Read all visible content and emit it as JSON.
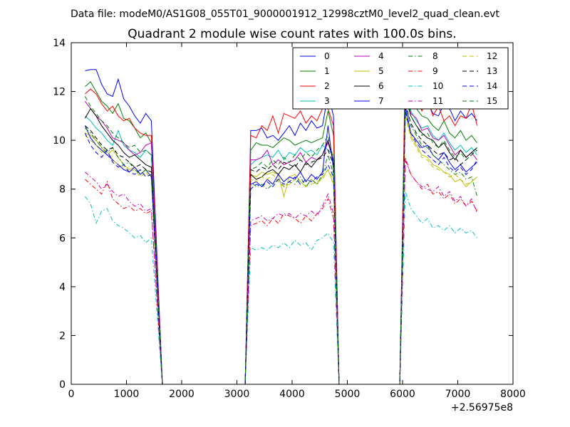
{
  "chart_data": {
    "type": "line",
    "suptitle": "Data file: modeM0/AS1G08_055T01_9000001912_12998cztM0_level2_quad_clean.evt",
    "title": "Quadrant 2 module wise count rates with 100.0s bins.",
    "xlabel": "",
    "ylabel": "",
    "x_offset_label": "+2.56975e8",
    "xlim": [
      0,
      8000
    ],
    "ylim": [
      0,
      14
    ],
    "xticks": [
      0,
      1000,
      2000,
      3000,
      4000,
      5000,
      6000,
      7000,
      8000
    ],
    "yticks": [
      0,
      2,
      4,
      6,
      8,
      10,
      12,
      14
    ],
    "grid": false,
    "legend": {
      "placement": "top-right",
      "columns": 4
    },
    "x_segments": [
      {
        "start": 250,
        "step": 100,
        "count": 13
      },
      {
        "start": 1650,
        "step": 100,
        "count": 1
      },
      {
        "start": 1650,
        "step": 100,
        "count": 15
      },
      {
        "start": 3250,
        "step": 100,
        "count": 15
      },
      {
        "start": 4850,
        "step": 100,
        "count": 1
      },
      {
        "start": 4850,
        "step": 100,
        "count": 11
      },
      {
        "start": 6050,
        "step": 100,
        "count": 14
      }
    ],
    "series": [
      {
        "name": "0",
        "color": "#0000ff",
        "dash": "solid",
        "on": [
          12.85,
          12.9,
          12.9,
          12.3,
          11.9,
          11.8,
          12.5,
          11.7,
          11.4,
          11.0,
          10.7,
          11.1,
          10.8,
          10.4
        ],
        "on2": [
          10.4,
          10.4,
          10.5,
          10.1,
          10.2,
          10.0,
          10.3,
          10.6,
          10.2,
          10.7,
          10.4,
          10.8,
          10.5,
          10.6,
          11.9,
          11.0
        ],
        "on3": [
          12.5,
          12.0,
          11.8,
          11.4,
          11.6,
          11.1,
          11.0,
          11.5,
          11.3,
          10.8,
          11.2,
          10.9,
          11.1,
          10.8
        ]
      },
      {
        "name": "1",
        "color": "#008000",
        "dash": "solid",
        "on": [
          12.2,
          12.4,
          12.0,
          11.6,
          11.4,
          11.1,
          11.5,
          10.9,
          10.8,
          10.5,
          10.1,
          10.3,
          9.9,
          9.5
        ],
        "on2": [
          9.6,
          9.9,
          9.8,
          9.8,
          9.7,
          9.9,
          10.1,
          10.0,
          9.8,
          9.9,
          10.0,
          9.9,
          10.0,
          10.1,
          11.2,
          10.2
        ],
        "on3": [
          12.2,
          11.8,
          11.3,
          11.0,
          10.9,
          10.6,
          10.4,
          10.8,
          10.3,
          10.1,
          10.4,
          10.0,
          10.2,
          9.9
        ]
      },
      {
        "name": "2",
        "color": "#ff0000",
        "dash": "solid",
        "on": [
          11.9,
          12.1,
          11.9,
          11.5,
          11.2,
          11.4,
          11.0,
          10.8,
          10.9,
          10.5,
          10.3,
          10.2,
          10.2,
          9.5
        ],
        "on2": [
          10.2,
          10.1,
          10.6,
          10.4,
          11.0,
          10.3,
          11.1,
          11.0,
          10.9,
          11.2,
          10.7,
          11.0,
          10.8,
          11.3,
          11.3,
          10.6
        ],
        "on3": [
          13.4,
          12.4,
          11.8,
          11.2,
          11.7,
          11.0,
          11.4,
          10.8,
          11.0,
          10.6,
          11.0,
          10.9,
          11.5,
          10.6
        ]
      },
      {
        "name": "3",
        "color": "#00bfbf",
        "dash": "solid",
        "on": [
          11.0,
          10.8,
          10.5,
          10.3,
          10.0,
          9.8,
          10.4,
          9.8,
          9.6,
          9.5,
          9.3,
          9.6,
          9.4,
          9.2
        ],
        "on2": [
          9.0,
          9.2,
          9.3,
          9.4,
          9.3,
          9.6,
          9.2,
          9.5,
          9.4,
          9.7,
          9.5,
          9.6,
          9.4,
          9.8,
          9.6,
          9.4
        ],
        "on3": [
          12.3,
          11.2,
          10.8,
          10.5,
          10.6,
          10.2,
          10.0,
          10.3,
          9.9,
          9.6,
          9.8,
          9.5,
          9.7,
          9.4
        ]
      },
      {
        "name": "4",
        "color": "#bf00bf",
        "dash": "solid",
        "on": [
          11.6,
          11.3,
          11.0,
          10.8,
          10.5,
          10.1,
          10.0,
          9.9,
          9.6,
          9.4,
          9.5,
          9.8,
          9.9,
          8.4
        ],
        "on2": [
          9.2,
          9.2,
          9.3,
          9.6,
          9.0,
          9.2,
          9.0,
          9.1,
          9.2,
          9.5,
          9.1,
          9.3,
          9.2,
          9.4,
          9.9,
          9.2
        ],
        "on3": [
          12.2,
          11.1,
          10.9,
          10.4,
          10.5,
          10.1,
          10.0,
          10.2,
          9.8,
          9.4,
          9.6,
          9.3,
          9.5,
          9.2
        ]
      },
      {
        "name": "5",
        "color": "#bfbf00",
        "dash": "solid",
        "on": [
          10.3,
          10.2,
          10.0,
          9.7,
          9.4,
          9.6,
          9.3,
          9.0,
          8.8,
          8.9,
          8.6,
          8.8,
          8.7,
          8.1
        ],
        "on2": [
          8.6,
          8.5,
          8.7,
          8.6,
          8.7,
          8.6,
          7.7,
          8.5,
          8.6,
          8.3,
          8.1,
          8.4,
          8.2,
          8.5,
          8.8,
          8.2
        ],
        "on3": [
          11.1,
          10.2,
          9.8,
          9.4,
          9.3,
          9.0,
          8.9,
          8.7,
          8.6,
          8.3,
          8.4,
          8.1,
          8.3,
          8.5
        ]
      },
      {
        "name": "6",
        "color": "#000000",
        "dash": "solid",
        "on": [
          10.9,
          11.3,
          11.0,
          10.6,
          10.3,
          10.0,
          9.8,
          9.5,
          9.3,
          9.4,
          9.2,
          9.0,
          8.9,
          8.6
        ],
        "on2": [
          8.6,
          8.4,
          8.5,
          8.7,
          8.8,
          8.6,
          8.9,
          8.8,
          9.0,
          8.7,
          9.1,
          8.9,
          9.2,
          9.4,
          10.0,
          9.1
        ],
        "on3": [
          11.8,
          11.0,
          10.6,
          10.3,
          10.1,
          10.0,
          9.7,
          9.9,
          9.5,
          9.2,
          9.6,
          9.3,
          9.5,
          9.7
        ]
      },
      {
        "name": "7",
        "color": "#0000ff",
        "dash": "solid",
        "on": [
          10.6,
          10.1,
          9.8,
          9.6,
          9.4,
          9.2,
          9.0,
          8.8,
          8.7,
          8.9,
          8.6,
          8.8,
          8.5,
          8.0
        ],
        "on2": [
          8.2,
          8.3,
          8.1,
          8.4,
          8.2,
          8.6,
          8.3,
          8.5,
          8.4,
          8.7,
          8.3,
          8.6,
          8.4,
          8.7,
          10.6,
          8.8
        ],
        "on3": [
          11.4,
          10.3,
          10.0,
          9.7,
          9.8,
          9.4,
          9.2,
          9.5,
          9.1,
          8.8,
          9.0,
          8.7,
          8.9,
          9.1
        ]
      },
      {
        "name": "8",
        "color": "#008000",
        "dash": "dashdot",
        "on": [
          10.5,
          10.3,
          10.0,
          9.7,
          9.5,
          9.7,
          9.3,
          9.0,
          9.1,
          8.8,
          8.6,
          8.8,
          8.5,
          8.0
        ],
        "on2": [
          8.3,
          8.1,
          8.2,
          8.0,
          8.2,
          8.4,
          8.1,
          8.3,
          8.2,
          8.5,
          8.1,
          8.4,
          8.2,
          8.6,
          9.4,
          8.6
        ],
        "on3": [
          11.6,
          10.6,
          10.2,
          9.8,
          9.7,
          9.4,
          9.2,
          9.0,
          8.8,
          8.6,
          8.7,
          8.4,
          8.5,
          7.7
        ]
      },
      {
        "name": "9",
        "color": "#ff0000",
        "dash": "dashdot",
        "on": [
          8.4,
          8.2,
          8.0,
          7.8,
          8.3,
          7.6,
          7.4,
          7.2,
          7.3,
          7.1,
          7.2,
          7.0,
          7.1,
          6.6
        ],
        "on2": [
          6.5,
          6.6,
          6.7,
          6.5,
          6.8,
          6.6,
          7.0,
          6.9,
          6.8,
          6.6,
          6.9,
          6.7,
          7.0,
          7.2,
          7.6,
          6.8
        ],
        "on3": [
          9.3,
          8.6,
          8.3,
          8.0,
          8.2,
          7.8,
          7.9,
          7.6,
          7.8,
          7.4,
          7.6,
          7.3,
          7.5,
          7.1
        ]
      },
      {
        "name": "10",
        "color": "#00bfbf",
        "dash": "dashdot",
        "on": [
          7.7,
          7.4,
          6.6,
          7.1,
          7.2,
          6.7,
          6.5,
          6.4,
          6.2,
          6.0,
          6.1,
          5.8,
          6.0,
          5.7
        ],
        "on2": [
          5.6,
          5.5,
          5.6,
          5.5,
          5.7,
          5.6,
          5.8,
          5.6,
          5.9,
          5.7,
          5.8,
          5.5,
          5.9,
          6.0,
          6.2,
          5.8
        ],
        "on3": [
          7.9,
          7.2,
          6.9,
          6.6,
          6.8,
          6.4,
          6.5,
          6.3,
          6.5,
          6.2,
          6.4,
          6.2,
          6.3,
          6.0
        ]
      },
      {
        "name": "11",
        "color": "#bf00bf",
        "dash": "dashdot",
        "on": [
          8.7,
          8.5,
          8.3,
          8.0,
          8.2,
          7.9,
          7.7,
          7.8,
          7.5,
          7.3,
          7.4,
          7.1,
          7.2,
          6.8
        ],
        "on2": [
          6.7,
          6.8,
          6.9,
          6.7,
          6.8,
          7.0,
          6.9,
          7.0,
          6.8,
          7.0,
          6.9,
          7.1,
          6.9,
          7.3,
          7.8,
          7.0
        ],
        "on3": [
          9.2,
          8.6,
          8.3,
          8.1,
          8.0,
          7.9,
          8.1,
          7.7,
          7.9,
          7.5,
          7.7,
          7.3,
          7.6,
          7.0
        ]
      },
      {
        "name": "12",
        "color": "#bfbf00",
        "dash": "dashed",
        "on": [
          10.2,
          10.0,
          9.8,
          9.5,
          9.6,
          9.2,
          9.0,
          8.9,
          8.7,
          8.8,
          8.5,
          8.7,
          8.4,
          8.0
        ],
        "on2": [
          8.4,
          8.3,
          8.5,
          8.4,
          8.6,
          8.3,
          8.1,
          8.2,
          8.4,
          8.3,
          8.1,
          8.2,
          8.3,
          8.4,
          8.8,
          8.4
        ],
        "on3": [
          11.0,
          10.1,
          9.7,
          9.3,
          9.2,
          8.9,
          8.8,
          8.7,
          8.5,
          8.6,
          8.4,
          8.2,
          8.3,
          8.5
        ]
      },
      {
        "name": "13",
        "color": "#000000",
        "dash": "dashed",
        "on": [
          10.6,
          10.4,
          10.1,
          9.8,
          9.6,
          9.7,
          9.4,
          9.3,
          9.1,
          8.9,
          9.0,
          8.8,
          8.7,
          8.3
        ],
        "on2": [
          8.8,
          8.7,
          8.9,
          8.8,
          9.0,
          8.8,
          9.1,
          9.0,
          8.9,
          9.2,
          9.0,
          9.1,
          9.2,
          9.3,
          9.6,
          9.0
        ],
        "on3": [
          11.5,
          10.7,
          10.3,
          10.0,
          9.8,
          9.6,
          9.4,
          9.5,
          9.2,
          9.3,
          9.0,
          9.2,
          9.4,
          9.6
        ]
      },
      {
        "name": "14",
        "color": "#0000ff",
        "dash": "dashed",
        "on": [
          10.3,
          9.8,
          9.5,
          9.3,
          9.6,
          9.1,
          8.9,
          9.0,
          8.7,
          8.6,
          8.8,
          8.5,
          8.6,
          8.1
        ],
        "on2": [
          8.0,
          8.2,
          8.1,
          8.3,
          8.1,
          8.4,
          8.2,
          8.3,
          8.5,
          8.2,
          8.4,
          8.3,
          8.5,
          8.6,
          9.0,
          8.5
        ],
        "on3": [
          11.2,
          10.3,
          9.9,
          9.6,
          9.4,
          9.2,
          9.0,
          9.3,
          8.9,
          8.7,
          8.9,
          8.6,
          8.8,
          9.2
        ]
      },
      {
        "name": "15",
        "color": "#008000",
        "dash": "dashed",
        "on": [
          11.8,
          11.4,
          11.1,
          10.8,
          10.6,
          10.3,
          10.1,
          9.9,
          9.7,
          9.8,
          9.5,
          9.6,
          9.4,
          8.7
        ],
        "on2": [
          8.8,
          8.9,
          9.1,
          8.9,
          9.2,
          9.0,
          9.3,
          9.1,
          9.4,
          9.2,
          9.5,
          9.3,
          9.6,
          9.8,
          10.2,
          9.2
        ],
        "on3": [
          12.0,
          11.0,
          10.6,
          10.2,
          10.3,
          9.9,
          9.7,
          10.0,
          9.6,
          9.3,
          9.5,
          9.2,
          9.4,
          9.7
        ]
      }
    ]
  }
}
